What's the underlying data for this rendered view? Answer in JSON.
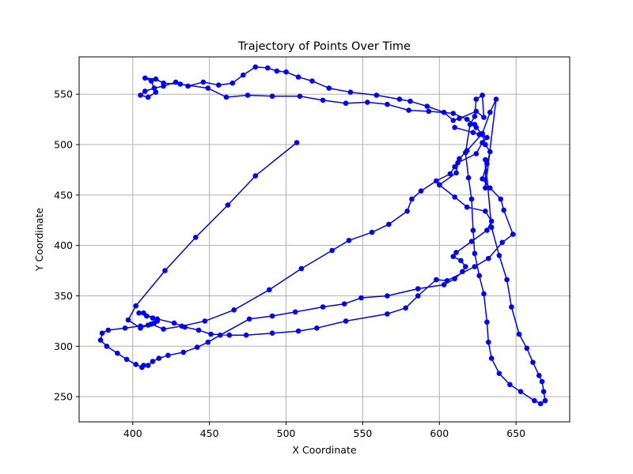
{
  "chart_data": {
    "type": "line",
    "title": "Trajectory of Points Over Time",
    "xlabel": "X Coordinate",
    "ylabel": "Y Coordinate",
    "xlim": [
      365,
      685
    ],
    "ylim": [
      225,
      587
    ],
    "xticks": [
      400,
      450,
      500,
      550,
      600,
      650
    ],
    "yticks": [
      250,
      300,
      350,
      400,
      450,
      500,
      550
    ],
    "grid": true,
    "color": "#0000ff",
    "marker": "circle",
    "series": [
      {
        "x": [
          507,
          480,
          462,
          441,
          421,
          402,
          397,
          405,
          412,
          420,
          432,
          447,
          466,
          489,
          510,
          530,
          541,
          556,
          567,
          579,
          582,
          588,
          598,
          607,
          610,
          613,
          618,
          628,
          633,
          637,
          630,
          630,
          634,
          639,
          644,
          647,
          652,
          657,
          661,
          665,
          667,
          668,
          669,
          666,
          662,
          653,
          646,
          639,
          634,
          632,
          631,
          629,
          626,
          623,
          622,
          621,
          619,
          617,
          620,
          623,
          624,
          628,
          629,
          624,
          613,
          609,
          603,
          592,
          581,
          574,
          559,
          542,
          528,
          517,
          508,
          500,
          494,
          488,
          480,
          472,
          465,
          456,
          446,
          436,
          428,
          420,
          414,
          408,
          405,
          410,
          415,
          412,
          408,
          415,
          420,
          431,
          449,
          461,
          475,
          491,
          509,
          524,
          539,
          553,
          566,
          580,
          593,
          609,
          618,
          623,
          624,
          628,
          630,
          633,
          631,
          628,
          633,
          640,
          642,
          648,
          641,
          632,
          623,
          605,
          598,
          586,
          578,
          566,
          539,
          520,
          508,
          491,
          474,
          463,
          451,
          443,
          434,
          427,
          416,
          409,
          404,
          407,
          413,
          416,
          414,
          410,
          405,
          395,
          384,
          380,
          379,
          383,
          390,
          396,
          402,
          406,
          407,
          410,
          413,
          417,
          423,
          433,
          442,
          449,
          457,
          476,
          491,
          506,
          524,
          538,
          549,
          566,
          586,
          603,
          610,
          615,
          617,
          614,
          609,
          611,
          621,
          631,
          634,
          630,
          618,
          610,
          600,
          611,
          612,
          624,
          628,
          631,
          626,
          622,
          610
        ],
        "y": [
          502,
          469,
          440,
          408,
          375,
          340,
          326,
          318,
          322,
          317,
          320,
          325,
          336,
          356,
          377,
          395,
          405,
          413,
          421,
          434,
          446,
          454,
          464,
          471,
          478,
          486,
          494,
          511,
          532,
          545,
          457,
          485,
          418,
          390,
          366,
          339,
          312,
          298,
          284,
          271,
          265,
          255,
          246,
          243,
          246,
          255,
          262,
          273,
          288,
          304,
          324,
          352,
          370,
          392,
          415,
          446,
          467,
          492,
          520,
          528,
          545,
          549,
          527,
          533,
          526,
          524,
          532,
          538,
          543,
          545,
          549,
          552,
          556,
          563,
          567,
          572,
          573,
          576,
          577,
          569,
          561,
          559,
          562,
          558,
          562,
          558,
          556,
          553,
          549,
          547,
          552,
          563,
          566,
          565,
          561,
          560,
          556,
          547,
          549,
          548,
          548,
          544,
          541,
          542,
          540,
          534,
          533,
          531,
          525,
          520,
          517,
          510,
          500,
          493,
          481,
          466,
          457,
          446,
          435,
          411,
          403,
          387,
          379,
          365,
          366,
          350,
          338,
          332,
          325,
          318,
          315,
          313,
          311,
          311,
          312,
          316,
          319,
          323,
          327,
          330,
          333,
          333,
          328,
          325,
          323,
          321,
          320,
          318,
          316,
          313,
          306,
          300,
          293,
          287,
          282,
          279,
          281,
          281,
          285,
          288,
          291,
          294,
          299,
          304,
          311,
          327,
          330,
          334,
          339,
          342,
          348,
          350,
          357,
          361,
          367,
          374,
          379,
          385,
          389,
          393,
          404,
          415,
          424,
          434,
          438,
          448,
          460,
          472,
          482,
          491,
          502,
          507,
          510,
          512,
          517
        ]
      }
    ]
  }
}
